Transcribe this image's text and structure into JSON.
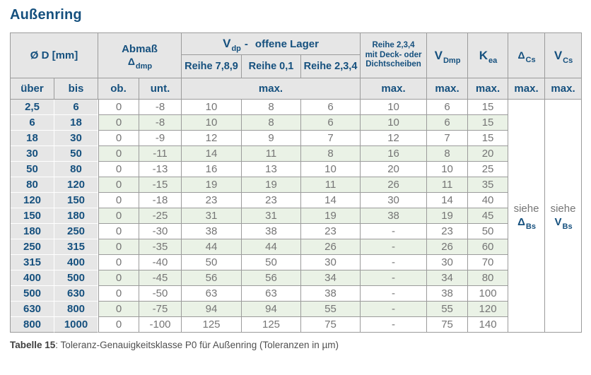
{
  "title": "Außenring",
  "caption": {
    "label": "Tabelle 15",
    "rest": ": Toleranz-Genauigkeitsklasse P0 für Außenring (Toleranzen in µm)"
  },
  "colors": {
    "accent_blue": "#15507e",
    "header_bg": "#e6e6e6",
    "row_tint_green": "#eaf2e6",
    "border_gray": "#9b9b9b",
    "value_gray": "#757575"
  },
  "header": {
    "diameter": {
      "label": "Ø D  [mm]",
      "sub_ueber": "über",
      "sub_bis": "bis"
    },
    "abmass": {
      "line1": "Abmaß",
      "symbol": "Δ",
      "symbol_sub": "dmp",
      "sub_ob": "ob.",
      "sub_unt": "unt."
    },
    "vdp": {
      "symbol": "V",
      "symbol_sub": "dp",
      "dash": "-",
      "rest": "offene Lager",
      "series": [
        "Reihe 7,8,9",
        "Reihe 0,1",
        "Reihe 2,3,4"
      ]
    },
    "sealed": {
      "line1": "Reihe 2,3,4",
      "line2": "mit Deck- oder",
      "line3": "Dichtscheiben"
    },
    "vdmp": {
      "symbol": "V",
      "symbol_sub": "Dmp"
    },
    "kea": {
      "symbol": "K",
      "symbol_sub": "ea"
    },
    "dcs": {
      "symbol": "Δ",
      "symbol_sub": "Cs"
    },
    "vcs": {
      "symbol": "V",
      "symbol_sub": "Cs"
    },
    "max_label": "max."
  },
  "merged": {
    "dcs": {
      "text": "siehe",
      "symbol": "Δ",
      "symbol_sub": "Bs"
    },
    "vcs": {
      "text": "siehe",
      "symbol": "V",
      "symbol_sub": "Bs"
    }
  },
  "rows": [
    {
      "ueber": "2,5",
      "bis": "6",
      "ob": "0",
      "unt": "-8",
      "reihe789": "10",
      "reihe01": "8",
      "reihe234": "6",
      "sealed": "10",
      "vdmp": "6",
      "kea": "15"
    },
    {
      "ueber": "6",
      "bis": "18",
      "ob": "0",
      "unt": "-8",
      "reihe789": "10",
      "reihe01": "8",
      "reihe234": "6",
      "sealed": "10",
      "vdmp": "6",
      "kea": "15"
    },
    {
      "ueber": "18",
      "bis": "30",
      "ob": "0",
      "unt": "-9",
      "reihe789": "12",
      "reihe01": "9",
      "reihe234": "7",
      "sealed": "12",
      "vdmp": "7",
      "kea": "15"
    },
    {
      "ueber": "30",
      "bis": "50",
      "ob": "0",
      "unt": "-11",
      "reihe789": "14",
      "reihe01": "11",
      "reihe234": "8",
      "sealed": "16",
      "vdmp": "8",
      "kea": "20"
    },
    {
      "ueber": "50",
      "bis": "80",
      "ob": "0",
      "unt": "-13",
      "reihe789": "16",
      "reihe01": "13",
      "reihe234": "10",
      "sealed": "20",
      "vdmp": "10",
      "kea": "25"
    },
    {
      "ueber": "80",
      "bis": "120",
      "ob": "0",
      "unt": "-15",
      "reihe789": "19",
      "reihe01": "19",
      "reihe234": "11",
      "sealed": "26",
      "vdmp": "11",
      "kea": "35"
    },
    {
      "ueber": "120",
      "bis": "150",
      "ob": "0",
      "unt": "-18",
      "reihe789": "23",
      "reihe01": "23",
      "reihe234": "14",
      "sealed": "30",
      "vdmp": "14",
      "kea": "40"
    },
    {
      "ueber": "150",
      "bis": "180",
      "ob": "0",
      "unt": "-25",
      "reihe789": "31",
      "reihe01": "31",
      "reihe234": "19",
      "sealed": "38",
      "vdmp": "19",
      "kea": "45"
    },
    {
      "ueber": "180",
      "bis": "250",
      "ob": "0",
      "unt": "-30",
      "reihe789": "38",
      "reihe01": "38",
      "reihe234": "23",
      "sealed": "-",
      "vdmp": "23",
      "kea": "50"
    },
    {
      "ueber": "250",
      "bis": "315",
      "ob": "0",
      "unt": "-35",
      "reihe789": "44",
      "reihe01": "44",
      "reihe234": "26",
      "sealed": "-",
      "vdmp": "26",
      "kea": "60"
    },
    {
      "ueber": "315",
      "bis": "400",
      "ob": "0",
      "unt": "-40",
      "reihe789": "50",
      "reihe01": "50",
      "reihe234": "30",
      "sealed": "-",
      "vdmp": "30",
      "kea": "70"
    },
    {
      "ueber": "400",
      "bis": "500",
      "ob": "0",
      "unt": "-45",
      "reihe789": "56",
      "reihe01": "56",
      "reihe234": "34",
      "sealed": "-",
      "vdmp": "34",
      "kea": "80"
    },
    {
      "ueber": "500",
      "bis": "630",
      "ob": "0",
      "unt": "-50",
      "reihe789": "63",
      "reihe01": "63",
      "reihe234": "38",
      "sealed": "-",
      "vdmp": "38",
      "kea": "100"
    },
    {
      "ueber": "630",
      "bis": "800",
      "ob": "0",
      "unt": "-75",
      "reihe789": "94",
      "reihe01": "94",
      "reihe234": "55",
      "sealed": "-",
      "vdmp": "55",
      "kea": "120"
    },
    {
      "ueber": "800",
      "bis": "1000",
      "ob": "0",
      "unt": "-100",
      "reihe789": "125",
      "reihe01": "125",
      "reihe234": "75",
      "sealed": "-",
      "vdmp": "75",
      "kea": "140"
    }
  ]
}
